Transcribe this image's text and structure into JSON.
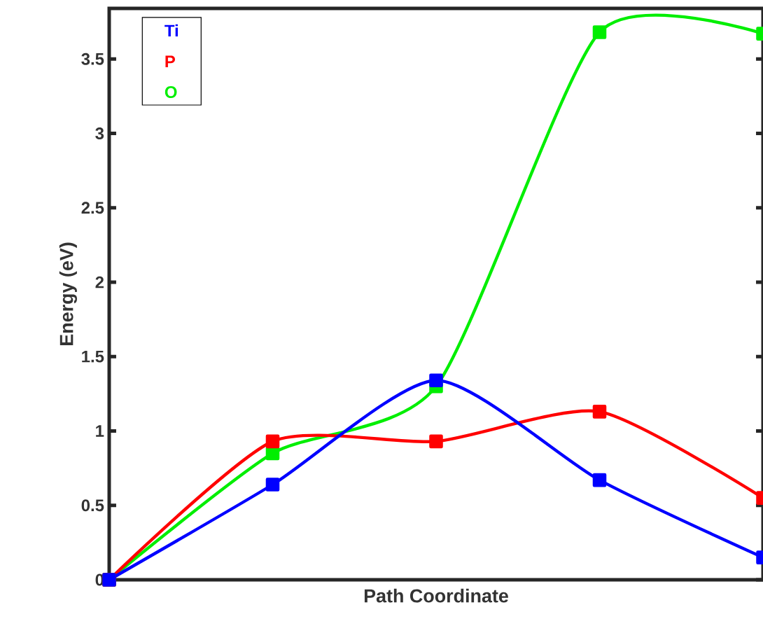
{
  "chart_data": {
    "type": "line",
    "xlabel": "Path Coordinate",
    "ylabel": "Energy (eV)",
    "categories": [
      null,
      null,
      null,
      null,
      null
    ],
    "series": [
      {
        "name": "Ti",
        "color": "#0000ff",
        "values": [
          0,
          0.64,
          1.34,
          0.67,
          0.15
        ]
      },
      {
        "name": "P",
        "color": "#ff0000",
        "values": [
          0,
          0.93,
          0.93,
          1.13,
          0.55
        ]
      },
      {
        "name": "O",
        "color": "#00ee00",
        "values": [
          0,
          0.85,
          1.3,
          3.68,
          3.67
        ]
      }
    ],
    "ylim": [
      0,
      3.84
    ],
    "yticks": [
      0,
      0.5,
      1,
      1.5,
      2,
      2.5,
      3,
      3.5
    ],
    "legend": "top left",
    "marker": "square",
    "line_style": "solid",
    "grid": false
  }
}
